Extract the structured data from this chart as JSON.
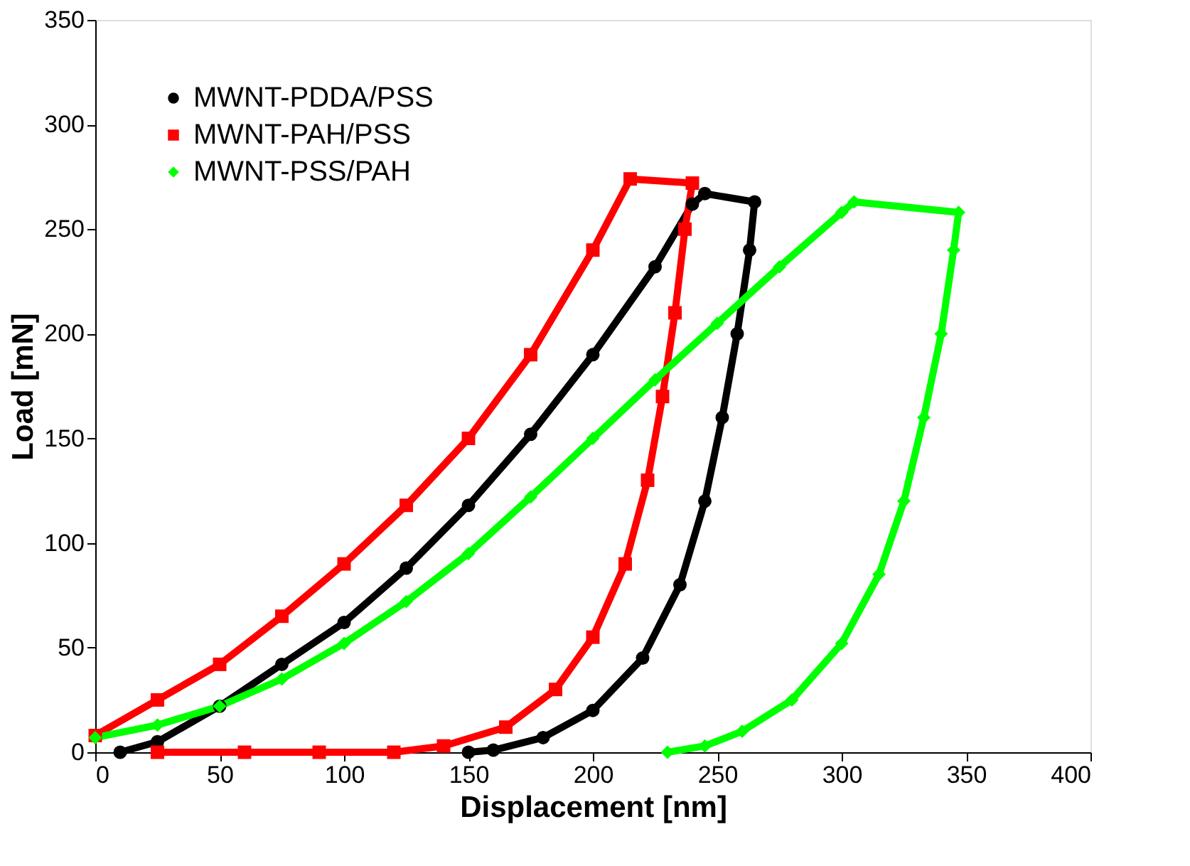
{
  "chart_data": {
    "type": "line",
    "xlabel": "Displacement [nm]",
    "ylabel": "Load [mN]",
    "xlim": [
      0,
      400
    ],
    "ylim": [
      0,
      350
    ],
    "xticks": [
      0,
      50,
      100,
      150,
      200,
      250,
      300,
      350,
      400
    ],
    "yticks": [
      0,
      50,
      100,
      150,
      200,
      250,
      300,
      350
    ],
    "grid": false,
    "legend": "top left",
    "series": [
      {
        "name": "MWNT-PDDA/PSS",
        "color": "#000000",
        "marker": "circle",
        "x": [
          10,
          25,
          50,
          75,
          100,
          125,
          150,
          175,
          200,
          225,
          240,
          245,
          265,
          263,
          258,
          252,
          245,
          235,
          220,
          200,
          180,
          160,
          150
        ],
        "values": [
          0,
          5,
          22,
          42,
          62,
          88,
          118,
          152,
          190,
          232,
          262,
          267,
          263,
          240,
          200,
          160,
          120,
          80,
          45,
          20,
          7,
          1,
          0
        ]
      },
      {
        "name": "MWNT-PAH/PSS",
        "color": "#ff0000",
        "marker": "square",
        "x": [
          0,
          25,
          50,
          75,
          100,
          125,
          150,
          175,
          200,
          215,
          240,
          237,
          233,
          228,
          222,
          213,
          200,
          185,
          165,
          140,
          120,
          90,
          60,
          25
        ],
        "values": [
          8,
          25,
          42,
          65,
          90,
          118,
          150,
          190,
          240,
          274,
          272,
          250,
          210,
          170,
          130,
          90,
          55,
          30,
          12,
          3,
          0,
          0,
          0,
          0
        ]
      },
      {
        "name": "MWNT-PSS/PAH",
        "color": "#00ff00",
        "marker": "diamond",
        "x": [
          0,
          25,
          50,
          75,
          100,
          125,
          150,
          175,
          200,
          225,
          250,
          275,
          300,
          305,
          347,
          345,
          340,
          333,
          325,
          315,
          300,
          280,
          260,
          245,
          230
        ],
        "values": [
          7,
          13,
          22,
          35,
          52,
          72,
          95,
          122,
          150,
          178,
          205,
          232,
          258,
          263,
          258,
          240,
          200,
          160,
          120,
          85,
          52,
          25,
          10,
          3,
          0
        ]
      }
    ]
  }
}
